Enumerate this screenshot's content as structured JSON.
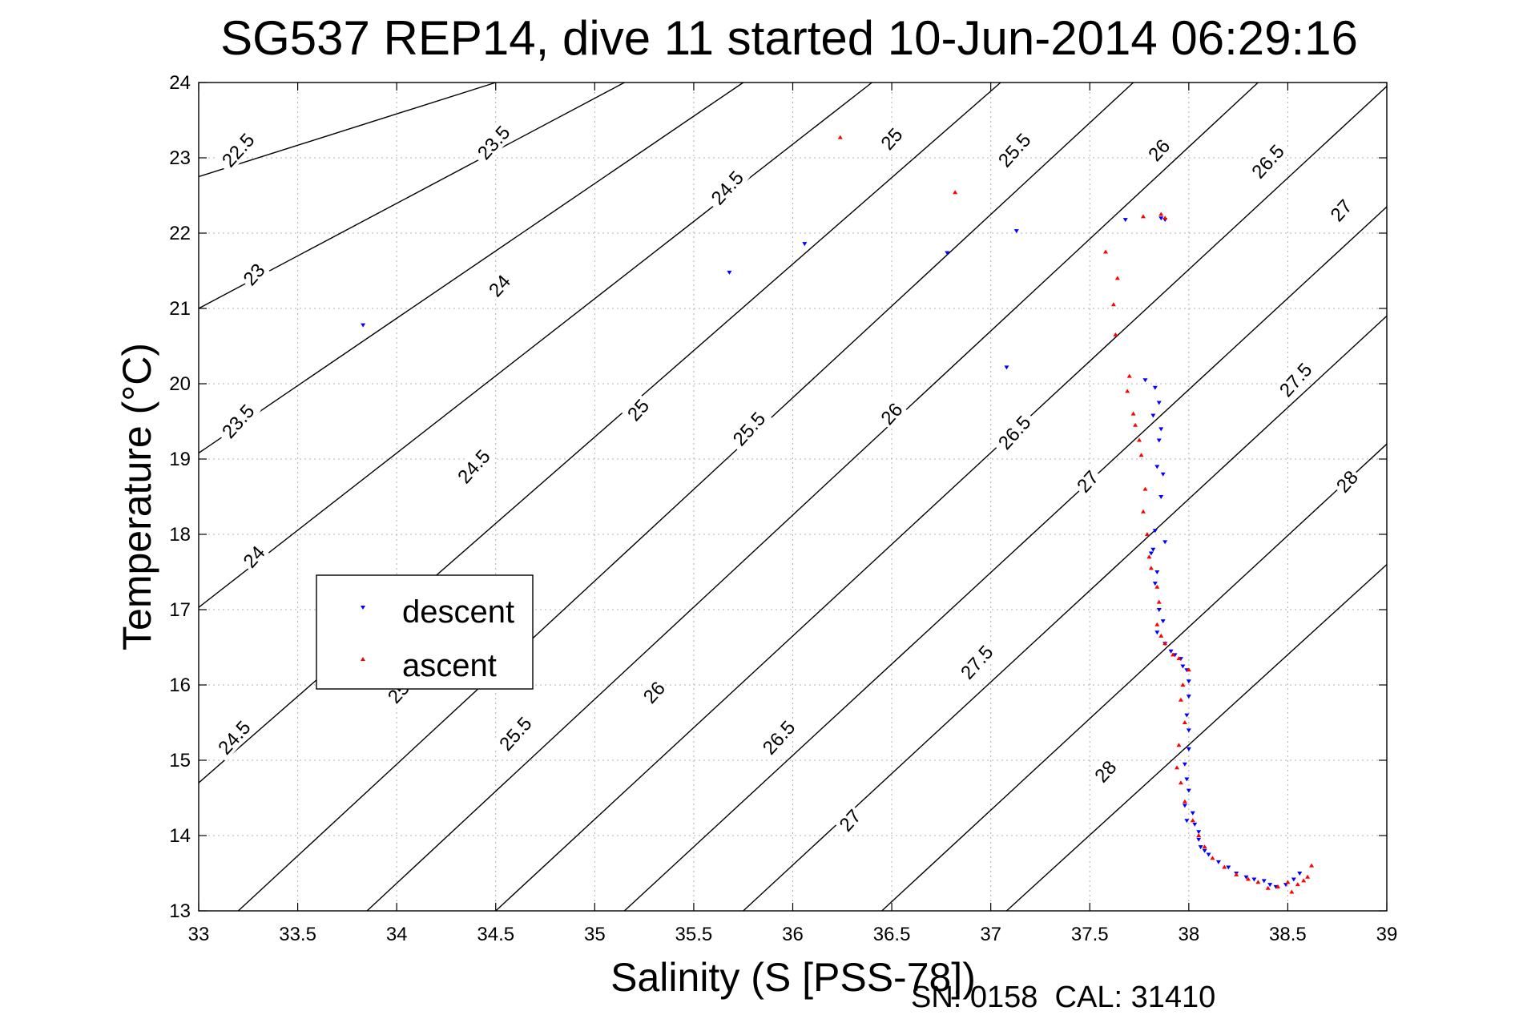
{
  "chart_data": {
    "type": "scatter",
    "title": "SG537 REP14, dive 11 started 10-Jun-2014 06:29:16",
    "xlabel": "Salinity (S [PSS-78])",
    "ylabel": "Temperature (°C)",
    "xlim": [
      33,
      39
    ],
    "ylim": [
      13,
      24
    ],
    "x_ticks": [
      "33",
      "33.5",
      "34",
      "34.5",
      "35",
      "35.5",
      "36",
      "36.5",
      "37",
      "37.5",
      "38",
      "38.5",
      "39"
    ],
    "y_ticks": [
      "13",
      "14",
      "15",
      "16",
      "17",
      "18",
      "19",
      "20",
      "21",
      "22",
      "23",
      "24"
    ],
    "grid": true,
    "legend_position": "left-middle",
    "footnote": "SN: 0158  CAL: 31410",
    "colors": {
      "descent": "#0000ff",
      "ascent": "#ff0000",
      "contour": "#000000",
      "grid": "#b0b0b0"
    },
    "contour_line_labels": [
      "22.5",
      "23",
      "23.5",
      "24",
      "24.5",
      "25",
      "25.5",
      "26",
      "26.5",
      "27",
      "27.5",
      "28"
    ],
    "density_contours": [
      {
        "sigma": 22.5,
        "points": [
          [
            33,
            22.75
          ],
          [
            34.5,
            24
          ]
        ]
      },
      {
        "sigma": 23,
        "points": [
          [
            33,
            21
          ],
          [
            35.15,
            24
          ]
        ]
      },
      {
        "sigma": 23.5,
        "points": [
          [
            33,
            19.08
          ],
          [
            35.75,
            24
          ]
        ]
      },
      {
        "sigma": 24,
        "points": [
          [
            33,
            17.03
          ],
          [
            36.4,
            24
          ]
        ]
      },
      {
        "sigma": 24.5,
        "points": [
          [
            33,
            14.7
          ],
          [
            37.05,
            24
          ]
        ]
      },
      {
        "sigma": 25,
        "points": [
          [
            33.2,
            13
          ],
          [
            37.72,
            24
          ]
        ]
      },
      {
        "sigma": 25.5,
        "points": [
          [
            33.85,
            13
          ],
          [
            38.35,
            24
          ]
        ]
      },
      {
        "sigma": 26,
        "points": [
          [
            34.5,
            13
          ],
          [
            39,
            23.95
          ]
        ]
      },
      {
        "sigma": 26.5,
        "points": [
          [
            35.15,
            13
          ],
          [
            39,
            22.35
          ]
        ]
      },
      {
        "sigma": 27,
        "points": [
          [
            35.75,
            13
          ],
          [
            39,
            20.9
          ]
        ]
      },
      {
        "sigma": 27.5,
        "points": [
          [
            36.45,
            13
          ],
          [
            39,
            19.2
          ]
        ]
      },
      {
        "sigma": 28,
        "points": [
          [
            37.08,
            13
          ],
          [
            39,
            17.6
          ]
        ]
      }
    ],
    "contour_labels": [
      {
        "text": "22.5",
        "x": 33.2,
        "y": 23.1
      },
      {
        "text": "23",
        "x": 33.28,
        "y": 21.45
      },
      {
        "text": "23.5",
        "x": 33.2,
        "y": 19.5
      },
      {
        "text": "24",
        "x": 33.28,
        "y": 17.7
      },
      {
        "text": "24.5",
        "x": 33.18,
        "y": 15.3
      },
      {
        "text": "23.5",
        "x": 34.49,
        "y": 23.2
      },
      {
        "text": "24",
        "x": 34.52,
        "y": 21.3
      },
      {
        "text": "24.5",
        "x": 34.39,
        "y": 18.9
      },
      {
        "text": "25",
        "x": 34.01,
        "y": 15.9
      },
      {
        "text": "24.5",
        "x": 35.67,
        "y": 22.6
      },
      {
        "text": "25",
        "x": 35.22,
        "y": 19.65
      },
      {
        "text": "25.5",
        "x": 34.6,
        "y": 15.35
      },
      {
        "text": "25",
        "x": 36.5,
        "y": 23.25
      },
      {
        "text": "25.5",
        "x": 35.78,
        "y": 19.4
      },
      {
        "text": "26",
        "x": 35.3,
        "y": 15.9
      },
      {
        "text": "25.5",
        "x": 37.12,
        "y": 23.1
      },
      {
        "text": "26",
        "x": 36.5,
        "y": 19.6
      },
      {
        "text": "26.5",
        "x": 35.93,
        "y": 15.3
      },
      {
        "text": "26",
        "x": 37.85,
        "y": 23.1
      },
      {
        "text": "26.5",
        "x": 37.12,
        "y": 19.35
      },
      {
        "text": "27",
        "x": 36.29,
        "y": 14.2
      },
      {
        "text": "26.5",
        "x": 38.4,
        "y": 22.95
      },
      {
        "text": "27",
        "x": 37.49,
        "y": 18.7
      },
      {
        "text": "27.5",
        "x": 36.93,
        "y": 16.3
      },
      {
        "text": "27",
        "x": 38.77,
        "y": 22.3
      },
      {
        "text": "27.5",
        "x": 38.54,
        "y": 20.05
      },
      {
        "text": "28",
        "x": 37.58,
        "y": 14.85
      },
      {
        "text": "28",
        "x": 38.8,
        "y": 18.7
      }
    ],
    "series": [
      {
        "name": "descent",
        "marker": "triangle-down",
        "x": [
          33.83,
          35.68,
          36.06,
          36.78,
          37.08,
          37.13,
          37.68,
          37.88,
          37.86,
          37.78,
          37.83,
          37.85,
          37.82,
          37.86,
          37.85,
          37.84,
          37.87,
          37.86,
          37.83,
          37.82,
          37.84,
          37.88,
          37.81,
          37.83,
          37.85,
          37.87,
          37.84,
          37.88,
          37.91,
          37.93,
          37.96,
          37.97,
          37.99,
          38.0,
          38.0,
          37.99,
          38.0,
          38.0,
          37.98,
          37.99,
          38.0,
          37.98,
          38.02,
          37.99,
          38.03,
          38.05,
          38.05,
          38.06,
          38.08,
          38.1,
          38.15,
          38.2,
          38.24,
          38.29,
          38.33,
          38.38,
          38.41,
          38.44,
          38.49,
          38.53,
          38.56
        ],
        "y": [
          20.78,
          21.48,
          21.86,
          21.74,
          20.22,
          22.03,
          22.18,
          22.18,
          22.2,
          20.05,
          19.95,
          19.75,
          19.58,
          19.4,
          19.25,
          18.9,
          18.8,
          18.5,
          18.05,
          17.8,
          17.5,
          17.9,
          17.75,
          17.35,
          17.0,
          16.85,
          16.7,
          16.55,
          16.45,
          16.4,
          16.35,
          16.25,
          16.2,
          16.05,
          15.85,
          15.6,
          15.4,
          15.15,
          14.95,
          14.75,
          14.6,
          14.4,
          14.3,
          14.2,
          14.15,
          14.05,
          13.95,
          13.85,
          13.8,
          13.75,
          13.65,
          13.58,
          13.5,
          13.45,
          13.42,
          13.4,
          13.35,
          13.32,
          13.35,
          13.42,
          13.5
        ]
      },
      {
        "name": "ascent",
        "marker": "triangle-up",
        "x": [
          36.24,
          36.82,
          37.77,
          37.86,
          37.88,
          37.58,
          37.64,
          37.62,
          37.63,
          37.7,
          37.69,
          37.72,
          37.73,
          37.75,
          37.76,
          37.78,
          37.77,
          37.79,
          37.8,
          37.81,
          37.84,
          37.85,
          37.84,
          37.86,
          37.88,
          37.92,
          37.95,
          38.0,
          37.97,
          37.96,
          37.98,
          37.95,
          37.94,
          37.96,
          37.98,
          38.02,
          38.05,
          38.08,
          38.12,
          38.18,
          38.24,
          38.3,
          38.35,
          38.4,
          38.45,
          38.5,
          38.55,
          38.6,
          38.62,
          38.58,
          38.52
        ],
        "y": [
          23.27,
          22.54,
          22.22,
          22.25,
          22.2,
          21.75,
          21.4,
          21.05,
          20.65,
          20.1,
          19.9,
          19.6,
          19.45,
          19.25,
          19.05,
          18.6,
          18.3,
          18.0,
          17.7,
          17.55,
          17.3,
          17.1,
          16.8,
          16.65,
          16.55,
          16.4,
          16.35,
          16.2,
          16.0,
          15.8,
          15.5,
          15.2,
          14.9,
          14.7,
          14.45,
          14.2,
          14.0,
          13.85,
          13.7,
          13.58,
          13.48,
          13.42,
          13.38,
          13.3,
          13.32,
          13.38,
          13.35,
          13.45,
          13.6,
          13.4,
          13.25
        ]
      }
    ]
  }
}
